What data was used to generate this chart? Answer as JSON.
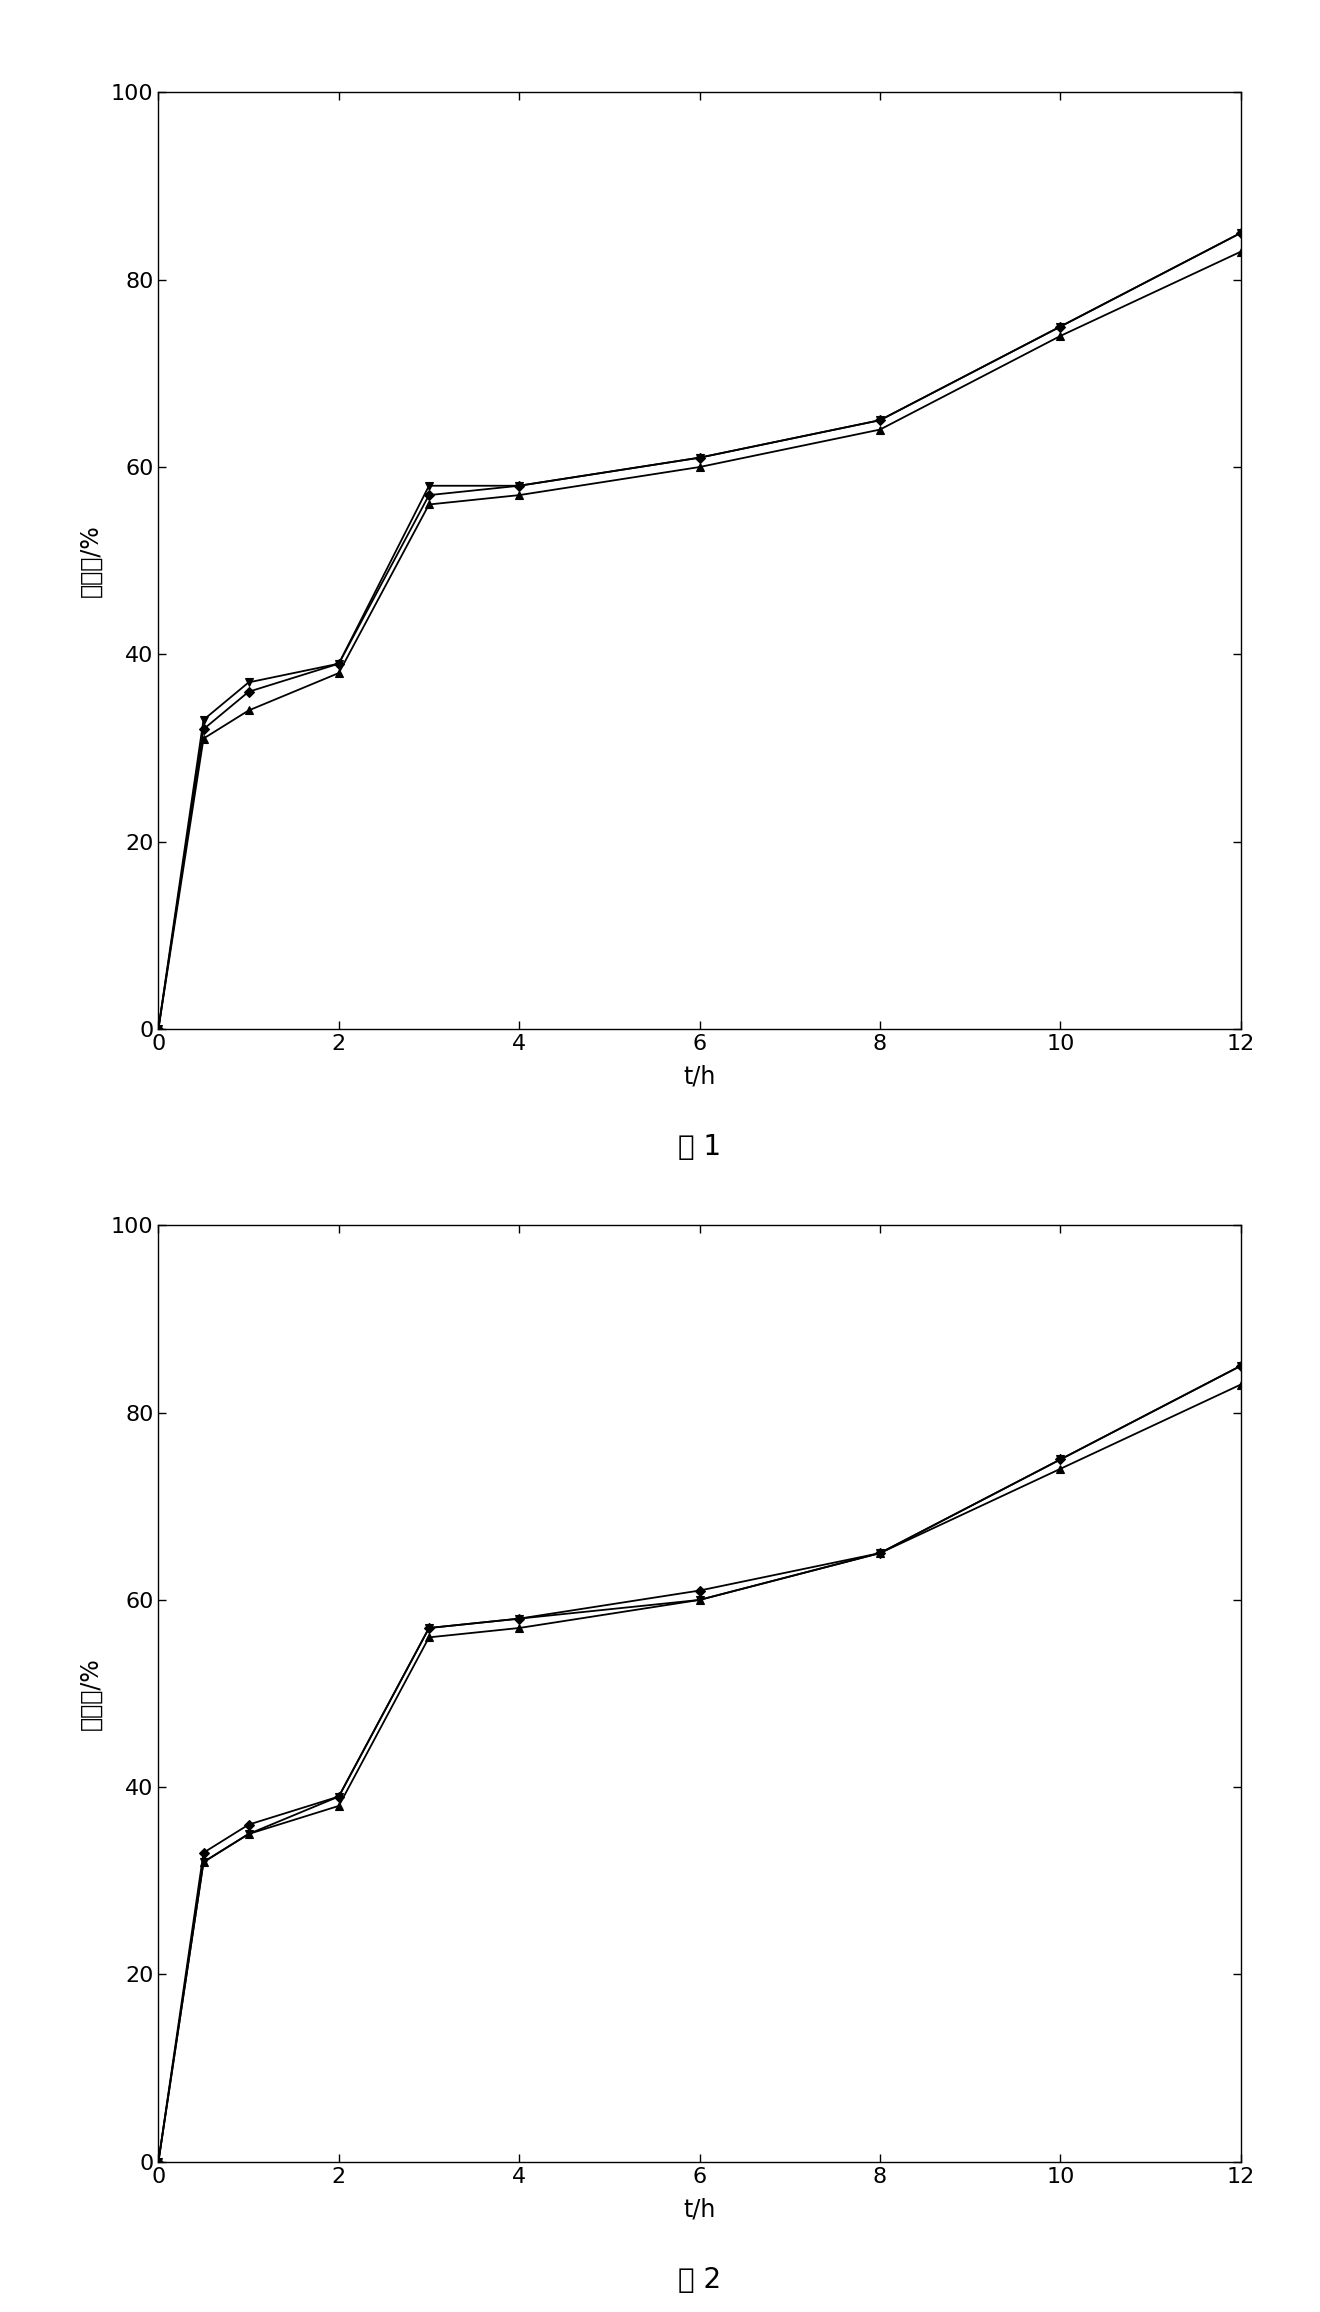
{
  "fig1": {
    "title": "图 1",
    "series": [
      {
        "x": [
          0,
          0.5,
          1.0,
          2.0,
          3.0,
          4.0,
          6.0,
          8.0,
          10.0,
          12.0
        ],
        "y": [
          0,
          32,
          36,
          39,
          57,
          58,
          61,
          65,
          75,
          85
        ],
        "marker": "D",
        "color": "#000000",
        "linewidth": 1.3,
        "ms": 5
      },
      {
        "x": [
          0,
          0.5,
          1.0,
          2.0,
          3.0,
          4.0,
          6.0,
          8.0,
          10.0,
          12.0
        ],
        "y": [
          0,
          31,
          34,
          38,
          56,
          57,
          60,
          64,
          74,
          83
        ],
        "marker": "^",
        "color": "#000000",
        "linewidth": 1.3,
        "ms": 6
      },
      {
        "x": [
          0,
          0.5,
          1.0,
          2.0,
          3.0,
          4.0,
          6.0,
          8.0,
          10.0,
          12.0
        ],
        "y": [
          0,
          33,
          37,
          39,
          58,
          58,
          61,
          65,
          75,
          85
        ],
        "marker": "v",
        "color": "#000000",
        "linewidth": 1.3,
        "ms": 6
      }
    ],
    "xlabel": "t/h",
    "ylabel": "释放量/%",
    "xlim": [
      0,
      12
    ],
    "ylim": [
      0,
      100
    ],
    "xticks": [
      0,
      2,
      4,
      6,
      8,
      10,
      12
    ],
    "yticks": [
      0,
      20,
      40,
      60,
      80,
      100
    ]
  },
  "fig2": {
    "title": "图 2",
    "series": [
      {
        "x": [
          0,
          0.5,
          1.0,
          2.0,
          3.0,
          4.0,
          6.0,
          8.0,
          10.0,
          12.0
        ],
        "y": [
          0,
          33,
          36,
          39,
          57,
          58,
          61,
          65,
          75,
          85
        ],
        "marker": "D",
        "color": "#000000",
        "linewidth": 1.3,
        "ms": 5
      },
      {
        "x": [
          0,
          0.5,
          1.0,
          2.0,
          3.0,
          4.0,
          6.0,
          8.0,
          10.0,
          12.0
        ],
        "y": [
          0,
          32,
          35,
          38,
          56,
          57,
          60,
          65,
          74,
          83
        ],
        "marker": "^",
        "color": "#000000",
        "linewidth": 1.3,
        "ms": 6
      },
      {
        "x": [
          0,
          0.5,
          1.0,
          2.0,
          3.0,
          4.0,
          6.0,
          8.0,
          10.0,
          12.0
        ],
        "y": [
          0,
          32,
          35,
          39,
          57,
          58,
          60,
          65,
          75,
          85
        ],
        "marker": "v",
        "color": "#000000",
        "linewidth": 1.3,
        "ms": 6
      }
    ],
    "xlabel": "t/h",
    "ylabel": "释放量/%",
    "xlim": [
      0,
      12
    ],
    "ylim": [
      0,
      100
    ],
    "xticks": [
      0,
      2,
      4,
      6,
      8,
      10,
      12
    ],
    "yticks": [
      0,
      20,
      40,
      60,
      80,
      100
    ]
  },
  "background_color": "#ffffff",
  "spine_color": "#000000",
  "tick_fontsize": 16,
  "label_fontsize": 17,
  "title_fontsize": 20
}
